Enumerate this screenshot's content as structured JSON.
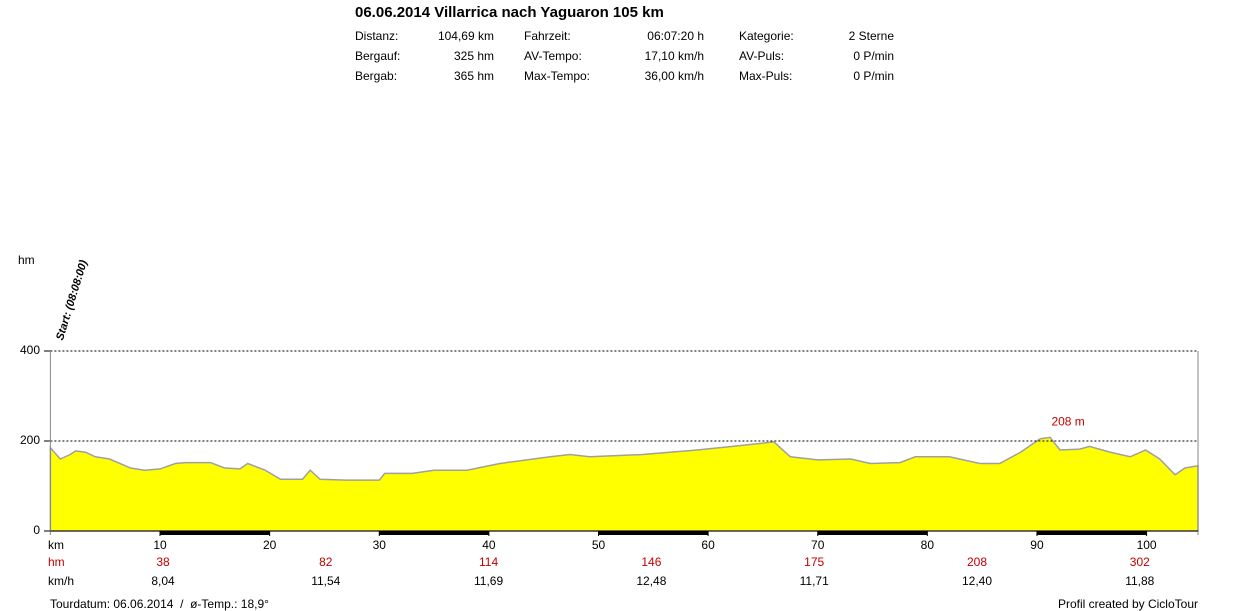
{
  "header": {
    "title": "06.06.2014 Villarrica nach Yaguaron 105 km",
    "stats": [
      [
        [
          "Distanz:",
          "104,69 km"
        ],
        [
          "Fahrzeit:",
          "06:07:20 h"
        ],
        [
          "Kategorie:",
          "2 Sterne"
        ]
      ],
      [
        [
          "Bergauf:",
          "325 hm"
        ],
        [
          "AV-Tempo:",
          "17,10 km/h"
        ],
        [
          "AV-Puls:",
          "0 P/min"
        ]
      ],
      [
        [
          "Bergab:",
          "365 hm"
        ],
        [
          "Max-Tempo:",
          "36,00 km/h"
        ],
        [
          "Max-Puls:",
          "0 P/min"
        ]
      ]
    ]
  },
  "chart_data": {
    "type": "area",
    "y_label": "hm",
    "x_label": "km",
    "start_label": "Start: (08:08:00)",
    "annotation": "208 m",
    "x": [
      0,
      0.9,
      1.8,
      2.3,
      3.2,
      4.1,
      5.4,
      7.3,
      8.6,
      10,
      11.4,
      12.3,
      14.6,
      15.9,
      17.3,
      18,
      19.6,
      21,
      23,
      23.7,
      24.6,
      27,
      30,
      30.5,
      33,
      35,
      38,
      41,
      45.6,
      47.4,
      49.2,
      54,
      59,
      63,
      66,
      67.5,
      70,
      73,
      74.8,
      77.5,
      78.9,
      82,
      84.8,
      86.6,
      88.5,
      90.3,
      91.2,
      92.1,
      93.9,
      94.8,
      96.7,
      98.5,
      99.9,
      101.2,
      102.6,
      103.5,
      104.69
    ],
    "series": [
      {
        "name": "hm",
        "color": "#ffff00",
        "values": [
          185,
          160,
          170,
          178,
          175,
          165,
          160,
          140,
          135,
          138,
          150,
          152,
          152,
          140,
          138,
          150,
          135,
          115,
          115,
          135,
          115,
          113,
          113,
          128,
          128,
          135,
          135,
          150,
          165,
          170,
          165,
          170,
          180,
          190,
          198,
          165,
          158,
          160,
          150,
          152,
          165,
          165,
          150,
          150,
          175,
          205,
          208,
          180,
          182,
          188,
          175,
          165,
          180,
          160,
          125,
          140,
          145
        ]
      }
    ],
    "xlim": [
      0,
      104.69
    ],
    "ylim": [
      0,
      400
    ],
    "xticks": [
      10,
      20,
      30,
      40,
      50,
      60,
      70,
      80,
      90,
      100
    ],
    "yticks": [
      0,
      200,
      400
    ],
    "grid": true,
    "rows": [
      {
        "label": "hm",
        "values": [
          38,
          82,
          114,
          146,
          175,
          208,
          302
        ]
      },
      {
        "label": "km/h",
        "values": [
          "8,04",
          "11,54",
          "11,69",
          "12,48",
          "11,71",
          "12,40",
          "11,88"
        ]
      }
    ]
  },
  "footer": {
    "left": "Tourdatum: 06.06.2014  /  ø-Temp.: 18,9°",
    "right": "Profil created by CicloTour"
  }
}
